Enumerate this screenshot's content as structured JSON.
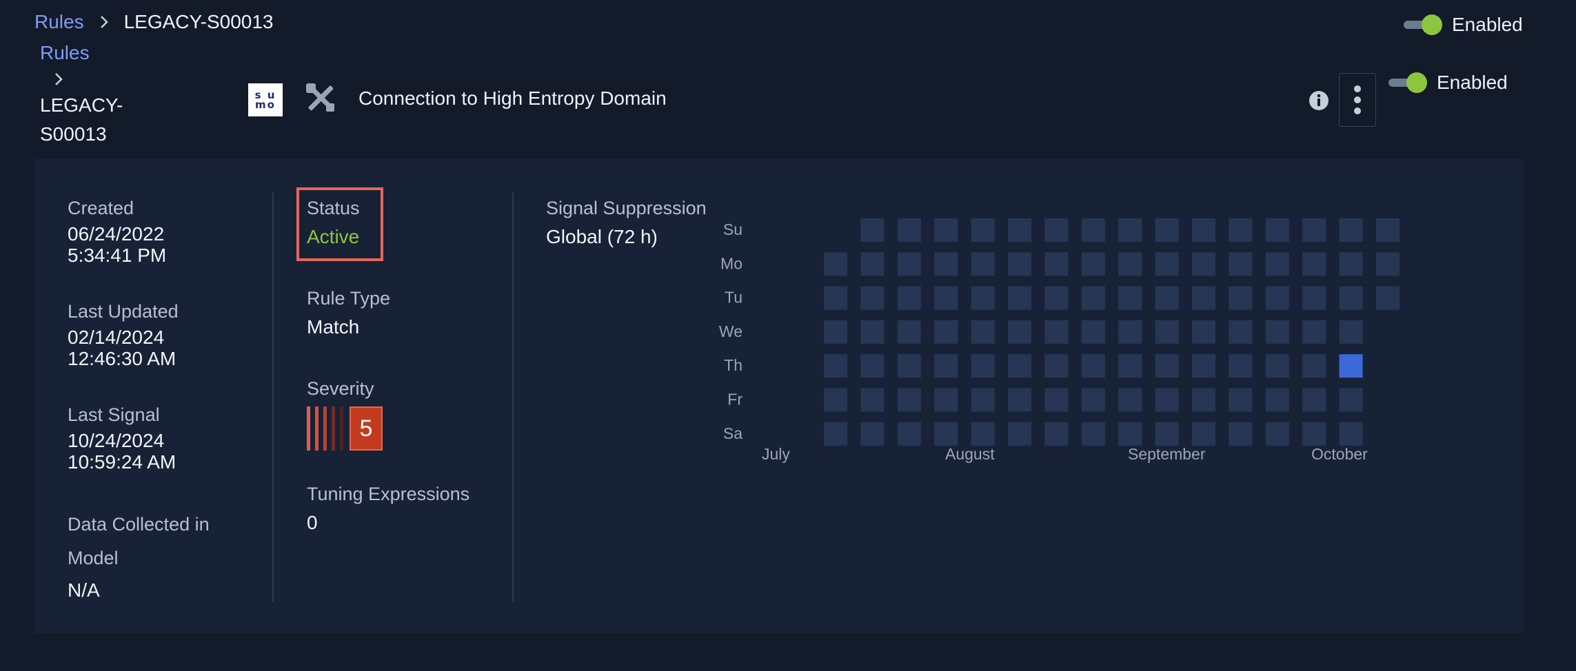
{
  "topbar": {
    "breadcrumb_link": "Rules",
    "breadcrumb_current": "LEGACY-S00013",
    "toggle_label": "Enabled"
  },
  "header": {
    "breadcrumb_link": "Rules",
    "breadcrumb_current": "LEGACY-S00013",
    "logo_text_top": "s u",
    "logo_text_bottom": "mo",
    "rule_name": "Connection to High Entropy Domain",
    "toggle_label": "Enabled"
  },
  "details": {
    "created_label": "Created",
    "created_date": "06/24/2022",
    "created_time": "5:34:41 PM",
    "updated_label": "Last Updated",
    "updated_date": "02/14/2024",
    "updated_time": "12:46:30 AM",
    "last_signal_label": "Last Signal",
    "last_signal_date": "10/24/2024",
    "last_signal_time": "10:59:24 AM",
    "data_collected_label_1": "Data Collected in",
    "data_collected_label_2": "Model",
    "data_collected_value": "N/A",
    "status_label": "Status",
    "status_value": "Active",
    "rule_type_label": "Rule Type",
    "rule_type_value": "Match",
    "severity_label": "Severity",
    "severity_value": "5",
    "tuning_label": "Tuning Expressions",
    "tuning_value": "0",
    "suppression_label": "Signal Suppression",
    "suppression_value": "Global (72 h)"
  },
  "colors": {
    "accent_link": "#7f9cf5",
    "status_active": "#8cc63f",
    "toggle_on": "#8cc63f",
    "highlight_box": "#e5685a",
    "severity_badge": "#c43a1f",
    "heat_empty": "#263654",
    "heat_active": "#3d68d8"
  },
  "activity": {
    "days": [
      "Su",
      "Mo",
      "Tu",
      "We",
      "Th",
      "Fr",
      "Sa"
    ],
    "months": [
      "July",
      "August",
      "September",
      "October"
    ],
    "weeks": 16,
    "first_week_start_day": 1,
    "last_week_end_day": 2,
    "active_cells": [
      {
        "week": 14,
        "day": 4
      }
    ]
  },
  "icons": {
    "chevron": "chevron-right-icon",
    "tools": "tools-icon",
    "info": "info-icon",
    "more": "more-vertical-icon",
    "logo": "sumo-logo"
  }
}
